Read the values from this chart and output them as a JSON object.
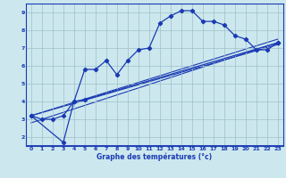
{
  "xlabel": "Graphe des temépatures (°c)",
  "xlabel_display": "Graphe des températures (°c)",
  "bg_color": "#cce8ee",
  "line_color": "#1a3ab4",
  "grid_color": "#9fbfc8",
  "ylim": [
    1.5,
    9.5
  ],
  "xlim": [
    -0.5,
    23.5
  ],
  "yticks": [
    2,
    3,
    4,
    5,
    6,
    7,
    8,
    9
  ],
  "xticks": [
    0,
    1,
    2,
    3,
    4,
    5,
    6,
    7,
    8,
    9,
    10,
    11,
    12,
    13,
    14,
    15,
    16,
    17,
    18,
    19,
    20,
    21,
    22,
    23
  ],
  "curve1_x": [
    0,
    1,
    2,
    3,
    4,
    5,
    6,
    7,
    8,
    9,
    10,
    11,
    12,
    13,
    14,
    15,
    16,
    17,
    18,
    19,
    20,
    21,
    22,
    23
  ],
  "curve1_y": [
    3.2,
    3.0,
    3.0,
    3.2,
    4.0,
    5.8,
    5.8,
    6.3,
    5.5,
    6.3,
    6.9,
    7.0,
    8.4,
    8.8,
    9.1,
    9.1,
    8.5,
    8.5,
    8.3,
    7.7,
    7.5,
    6.9,
    6.9,
    7.3
  ],
  "curve2_x": [
    0,
    3,
    4,
    5,
    23
  ],
  "curve2_y": [
    3.2,
    1.7,
    4.0,
    4.1,
    7.3
  ],
  "curve3_x": [
    0,
    23
  ],
  "curve3_y": [
    3.2,
    7.5
  ],
  "curve4_x": [
    0,
    23
  ],
  "curve4_y": [
    3.2,
    7.2
  ],
  "curve5_x": [
    0,
    23
  ],
  "curve5_y": [
    2.8,
    7.3
  ]
}
